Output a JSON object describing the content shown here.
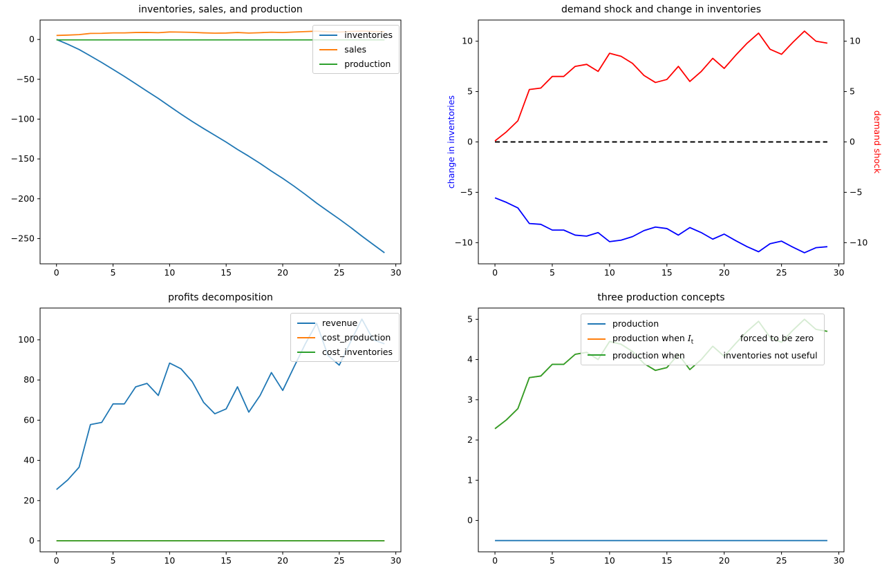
{
  "figure": {
    "background": "#ffffff",
    "palette": {
      "tab_blue": "#1f77b4",
      "tab_orange": "#ff7f0e",
      "tab_green": "#2ca02c",
      "pure_blue": "#0000ff",
      "pure_red": "#ff0000",
      "black": "#000000"
    }
  },
  "chart_data": [
    {
      "type": "line",
      "title": "inventories, sales, and production",
      "xlabel": "",
      "ylabel": "",
      "grid": false,
      "x": [
        0,
        1,
        2,
        3,
        4,
        5,
        6,
        7,
        8,
        9,
        10,
        11,
        12,
        13,
        14,
        15,
        16,
        17,
        18,
        19,
        20,
        21,
        22,
        23,
        24,
        25,
        26,
        27,
        28,
        29
      ],
      "xlim": [
        -1.45,
        30.45
      ],
      "ylim": [
        -281.7,
        24.4
      ],
      "xticks": [
        0,
        5,
        10,
        15,
        20,
        25,
        30
      ],
      "yticks": [
        0,
        -50,
        -100,
        -150,
        -200,
        -250
      ],
      "series": [
        {
          "name": "inventories",
          "color": "#1f77b4",
          "values": [
            0,
            -6.0,
            -12.6,
            -20.7,
            -28.9,
            -37.6,
            -46.4,
            -55.6,
            -64.9,
            -74.0,
            -83.9,
            -93.6,
            -103.0,
            -111.8,
            -120.3,
            -128.9,
            -138.1,
            -146.6,
            -155.6,
            -165.3,
            -174.4,
            -184.2,
            -194.6,
            -205.5,
            -215.6,
            -225.5,
            -235.9,
            -246.9,
            -257.4,
            -267.8
          ]
        },
        {
          "name": "sales",
          "color": "#ff7f0e",
          "values": [
            5.05,
            5.5,
            6.05,
            7.6,
            7.68,
            8.25,
            8.25,
            8.75,
            8.85,
            8.5,
            9.4,
            9.25,
            8.9,
            8.3,
            7.95,
            8.1,
            8.75,
            8.0,
            8.5,
            9.15,
            8.65,
            9.3,
            9.9,
            10.4,
            9.6,
            9.35,
            9.95,
            10.5,
            10.0,
            9.9
          ]
        },
        {
          "name": "production",
          "color": "#2ca02c",
          "values": [
            -0.5,
            -0.5,
            -0.5,
            -0.5,
            -0.5,
            -0.5,
            -0.5,
            -0.5,
            -0.5,
            -0.5,
            -0.5,
            -0.5,
            -0.5,
            -0.5,
            -0.5,
            -0.5,
            -0.5,
            -0.5,
            -0.5,
            -0.5,
            -0.5,
            -0.5,
            -0.5,
            -0.5,
            -0.5,
            -0.5,
            -0.5,
            -0.5,
            -0.5,
            -0.5
          ]
        }
      ],
      "legend": {
        "position": "upper-right",
        "entries": [
          {
            "color": "#1f77b4",
            "segments": [
              {
                "t": "inventories"
              }
            ]
          },
          {
            "color": "#ff7f0e",
            "segments": [
              {
                "t": "sales"
              }
            ]
          },
          {
            "color": "#2ca02c",
            "segments": [
              {
                "t": "production"
              }
            ]
          }
        ]
      }
    },
    {
      "type": "line",
      "title": "demand shock and change in inventories",
      "grid": false,
      "x": [
        0,
        1,
        2,
        3,
        4,
        5,
        6,
        7,
        8,
        9,
        10,
        11,
        12,
        13,
        14,
        15,
        16,
        17,
        18,
        19,
        20,
        21,
        22,
        23,
        24,
        25,
        26,
        27,
        28,
        29
      ],
      "xlim": [
        -1.45,
        30.45
      ],
      "ylim": [
        -12.1,
        12.1
      ],
      "xticks": [
        0,
        5,
        10,
        15,
        20,
        25,
        30
      ],
      "yticks": [
        10,
        5,
        0,
        -5,
        -10
      ],
      "yticks_right": [
        10,
        5,
        0,
        -5,
        -10
      ],
      "ylabel_left": {
        "text": "change in inventories",
        "color": "#0000ff"
      },
      "ylabel_right": {
        "text": "demand shock",
        "color": "#ff0000"
      },
      "series": [
        {
          "name": "change in inventories",
          "color": "#0000ff",
          "values": [
            -5.55,
            -6.0,
            -6.55,
            -8.1,
            -8.18,
            -8.75,
            -8.75,
            -9.25,
            -9.35,
            -9.0,
            -9.9,
            -9.75,
            -9.4,
            -8.8,
            -8.45,
            -8.6,
            -9.25,
            -8.5,
            -9.0,
            -9.65,
            -9.15,
            -9.8,
            -10.4,
            -10.9,
            -10.1,
            -9.85,
            -10.45,
            -11.0,
            -10.5,
            -10.4
          ]
        },
        {
          "name": "zero line",
          "color": "#000000",
          "dash": "7 4.3",
          "width": 2,
          "values": [
            0,
            0,
            0,
            0,
            0,
            0,
            0,
            0,
            0,
            0,
            0,
            0,
            0,
            0,
            0,
            0,
            0,
            0,
            0,
            0,
            0,
            0,
            0,
            0,
            0,
            0,
            0,
            0,
            0,
            0
          ]
        },
        {
          "name": "demand shock",
          "color": "#ff0000",
          "values": [
            0.1,
            1.0,
            2.1,
            5.2,
            5.35,
            6.5,
            6.5,
            7.5,
            7.7,
            7.0,
            8.8,
            8.5,
            7.8,
            6.6,
            5.9,
            6.2,
            7.5,
            6.0,
            7.0,
            8.3,
            7.3,
            8.6,
            9.8,
            10.8,
            9.2,
            8.7,
            9.9,
            11.0,
            10.0,
            9.8
          ]
        }
      ]
    },
    {
      "type": "line",
      "title": "profits decomposition",
      "grid": false,
      "x": [
        0,
        1,
        2,
        3,
        4,
        5,
        6,
        7,
        8,
        9,
        10,
        11,
        12,
        13,
        14,
        15,
        16,
        17,
        18,
        19,
        20,
        21,
        22,
        23,
        24,
        25,
        26,
        27,
        28,
        29
      ],
      "xlim": [
        -1.45,
        30.45
      ],
      "ylim": [
        -5.5,
        115.8
      ],
      "xticks": [
        0,
        5,
        10,
        15,
        20,
        25,
        30
      ],
      "yticks": [
        0,
        20,
        40,
        60,
        80,
        100
      ],
      "series": [
        {
          "name": "revenue",
          "color": "#1f77b4",
          "values": [
            25.5,
            30.3,
            36.6,
            57.8,
            58.9,
            68.1,
            68.1,
            76.6,
            78.3,
            72.3,
            88.4,
            85.6,
            79.2,
            68.9,
            63.2,
            65.6,
            76.6,
            64.0,
            72.3,
            83.7,
            74.8,
            86.5,
            98.0,
            108.2,
            92.2,
            87.4,
            99.0,
            110.3,
            100.0,
            98.0
          ]
        },
        {
          "name": "cost_production",
          "color": "#ff7f0e",
          "values": [
            0,
            0,
            0,
            0,
            0,
            0,
            0,
            0,
            0,
            0,
            0,
            0,
            0,
            0,
            0,
            0,
            0,
            0,
            0,
            0,
            0,
            0,
            0,
            0,
            0,
            0,
            0,
            0,
            0,
            0
          ]
        },
        {
          "name": "cost_inventories",
          "color": "#2ca02c",
          "values": [
            0,
            0,
            0,
            0,
            0,
            0,
            0,
            0,
            0,
            0,
            0,
            0,
            0,
            0,
            0,
            0,
            0,
            0,
            0,
            0,
            0,
            0,
            0,
            0,
            0,
            0,
            0,
            0,
            0,
            0
          ]
        }
      ],
      "legend": {
        "position": "upper-right",
        "entries": [
          {
            "color": "#1f77b4",
            "segments": [
              {
                "t": "revenue"
              }
            ]
          },
          {
            "color": "#ff7f0e",
            "segments": [
              {
                "t": "cost_production"
              }
            ]
          },
          {
            "color": "#2ca02c",
            "segments": [
              {
                "t": "cost_inventories"
              }
            ]
          }
        ]
      }
    },
    {
      "type": "line",
      "title": "three production concepts",
      "grid": false,
      "x": [
        0,
        1,
        2,
        3,
        4,
        5,
        6,
        7,
        8,
        9,
        10,
        11,
        12,
        13,
        14,
        15,
        16,
        17,
        18,
        19,
        20,
        21,
        22,
        23,
        24,
        25,
        26,
        27,
        28,
        29
      ],
      "xlim": [
        -1.45,
        30.45
      ],
      "ylim": [
        -0.78,
        5.28
      ],
      "xticks": [
        0,
        5,
        10,
        15,
        20,
        25,
        30
      ],
      "yticks": [
        0,
        1,
        2,
        3,
        4,
        5
      ],
      "series": [
        {
          "name": "production",
          "color": "#1f77b4",
          "values": [
            -0.5,
            -0.5,
            -0.5,
            -0.5,
            -0.5,
            -0.5,
            -0.5,
            -0.5,
            -0.5,
            -0.5,
            -0.5,
            -0.5,
            -0.5,
            -0.5,
            -0.5,
            -0.5,
            -0.5,
            -0.5,
            -0.5,
            -0.5,
            -0.5,
            -0.5,
            -0.5,
            -0.5,
            -0.5,
            -0.5,
            -0.5,
            -0.5,
            -0.5,
            -0.5
          ]
        },
        {
          "name": "production when I_t forced to be zero",
          "color": "#ff7f0e",
          "values": [
            2.28,
            2.5,
            2.78,
            3.55,
            3.59,
            3.88,
            3.88,
            4.13,
            4.18,
            4.0,
            4.45,
            4.38,
            4.2,
            3.9,
            3.73,
            3.8,
            4.13,
            3.75,
            4.0,
            4.33,
            4.08,
            4.4,
            4.7,
            4.95,
            4.55,
            4.43,
            4.73,
            5.0,
            4.75,
            4.7
          ]
        },
        {
          "name": "production when inventories not useful",
          "color": "#2ca02c",
          "values": [
            2.28,
            2.5,
            2.78,
            3.55,
            3.59,
            3.88,
            3.88,
            4.13,
            4.18,
            4.0,
            4.45,
            4.38,
            4.2,
            3.9,
            3.73,
            3.8,
            4.13,
            3.75,
            4.0,
            4.33,
            4.08,
            4.4,
            4.7,
            4.95,
            4.55,
            4.43,
            4.73,
            5.0,
            4.75,
            4.7
          ]
        }
      ],
      "legend": {
        "position": "upper-center",
        "left": 195,
        "top": 37,
        "entries": [
          {
            "color": "#1f77b4",
            "segments": [
              {
                "t": "production"
              }
            ]
          },
          {
            "color": "#ff7f0e",
            "segments": [
              {
                "t": "production when "
              },
              {
                "i": "I",
                "sub": "t"
              },
              {
                "t": "                 forced to be zero"
              }
            ]
          },
          {
            "color": "#2ca02c",
            "segments": [
              {
                "t": "production when              inventories not useful"
              }
            ]
          }
        ]
      }
    }
  ]
}
